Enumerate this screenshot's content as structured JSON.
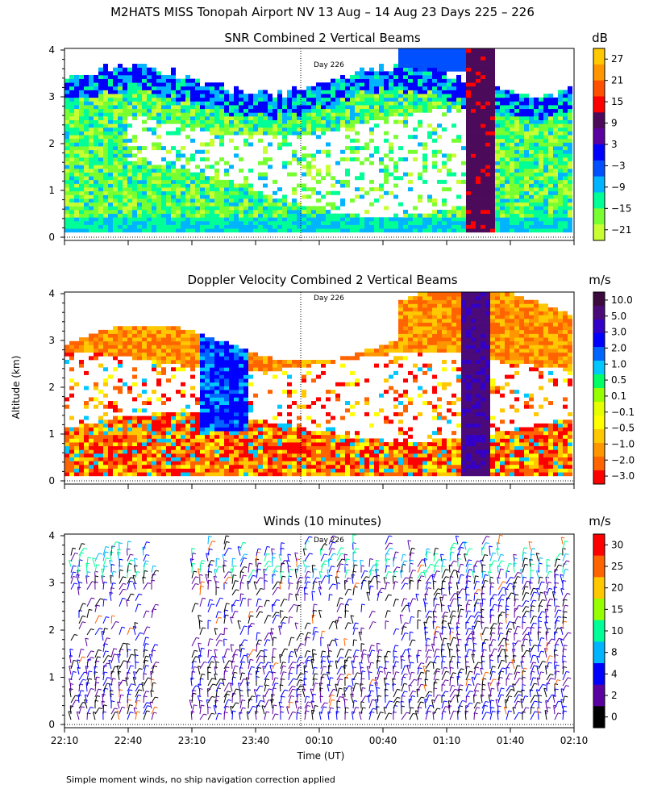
{
  "title": "M2HATS MISS Tonopah Airport NV  13 Aug – 14 Aug 23 Days 225 – 226",
  "y_axis_label": "Altitude (km)",
  "x_axis_label": "Time (UT)",
  "footnote": "Simple moment winds, no ship navigation correction applied",
  "x_ticks": [
    "22:10",
    "22:40",
    "23:10",
    "23:40",
    "00:10",
    "00:40",
    "01:10",
    "01:40",
    "02:10"
  ],
  "y_ticks": [
    "0",
    "1",
    "2",
    "3",
    "4"
  ],
  "day_marker": "Day 226",
  "panels": [
    {
      "title": "SNR Combined 2 Vertical Beams",
      "unit": "dB",
      "colorbar_labels": [
        "27",
        "21",
        "15",
        "9",
        "3",
        "−3",
        "−9",
        "−15",
        "−21"
      ],
      "colors": [
        "#ffc800",
        "#ff9600",
        "#ff5000",
        "#ff0000",
        "#4b0a5a",
        "#5a00a0",
        "#0000ff",
        "#0050ff",
        "#00b4ff",
        "#00ff96",
        "#78ff32",
        "#c8ff32"
      ]
    },
    {
      "title": "Doppler Velocity Combined 2 Vertical Beams",
      "unit": "m/s",
      "colorbar_labels": [
        "10.0",
        "5.0",
        "3.0",
        "2.0",
        "1.0",
        "0.5",
        "0.1",
        "−0.1",
        "−0.5",
        "−1.0",
        "−2.0",
        "−3.0"
      ],
      "colors": [
        "#3c0a3c",
        "#4b0a7a",
        "#3200c8",
        "#0000ff",
        "#0064ff",
        "#00c8ff",
        "#00ff64",
        "#96ff00",
        "#e6ff00",
        "#ffff00",
        "#ffc800",
        "#ff9600",
        "#ff6400",
        "#ff0000"
      ]
    },
    {
      "title": "Winds (10 minutes)",
      "unit": "m/s",
      "colorbar_labels": [
        "30",
        "25",
        "20",
        "15",
        "10",
        "8",
        "4",
        "2",
        "0"
      ],
      "colors": [
        "#ff0000",
        "#ff6400",
        "#ffc800",
        "#96ff00",
        "#00ff96",
        "#00b4ff",
        "#0000ff",
        "#5a00a0",
        "#000000"
      ]
    }
  ],
  "chart_data": [
    {
      "type": "heatmap",
      "title": "SNR Combined 2 Vertical Beams",
      "ylabel": "Altitude (km)",
      "ylim": [
        0,
        4
      ],
      "colorbar_unit": "dB",
      "colorbar_range": [
        -21,
        27
      ]
    },
    {
      "type": "heatmap",
      "title": "Doppler Velocity Combined 2 Vertical Beams",
      "ylabel": "Altitude (km)",
      "ylim": [
        0,
        4
      ],
      "colorbar_unit": "m/s",
      "colorbar_range": [
        -3.0,
        10.0
      ]
    },
    {
      "type": "scatter",
      "title": "Winds (10 minutes)",
      "ylabel": "Altitude (km)",
      "xlabel": "Time (UT)",
      "ylim": [
        0,
        4
      ],
      "colorbar_unit": "m/s",
      "colorbar_range": [
        0,
        30
      ]
    }
  ]
}
